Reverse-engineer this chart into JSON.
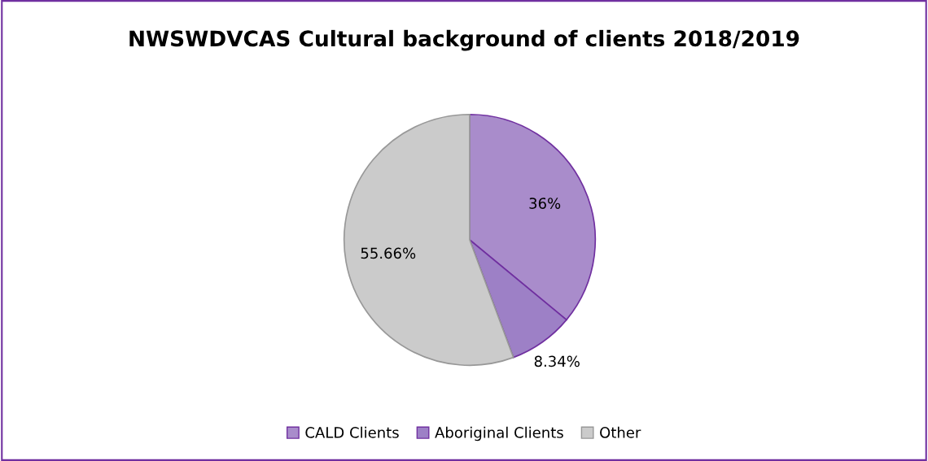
{
  "chart_data": {
    "type": "pie",
    "title": "NWSWDVCAS Cultural background of clients 2018/2019",
    "categories": [
      "CALD Clients",
      "Aboriginal Clients",
      "Other"
    ],
    "values": [
      36,
      8.34,
      55.66
    ],
    "colors": [
      "#a98ccb",
      "#9d80c6",
      "#cbcbcb"
    ],
    "value_labels": [
      "36%",
      "8.34%",
      "55.66%"
    ],
    "legend": "bottom"
  }
}
